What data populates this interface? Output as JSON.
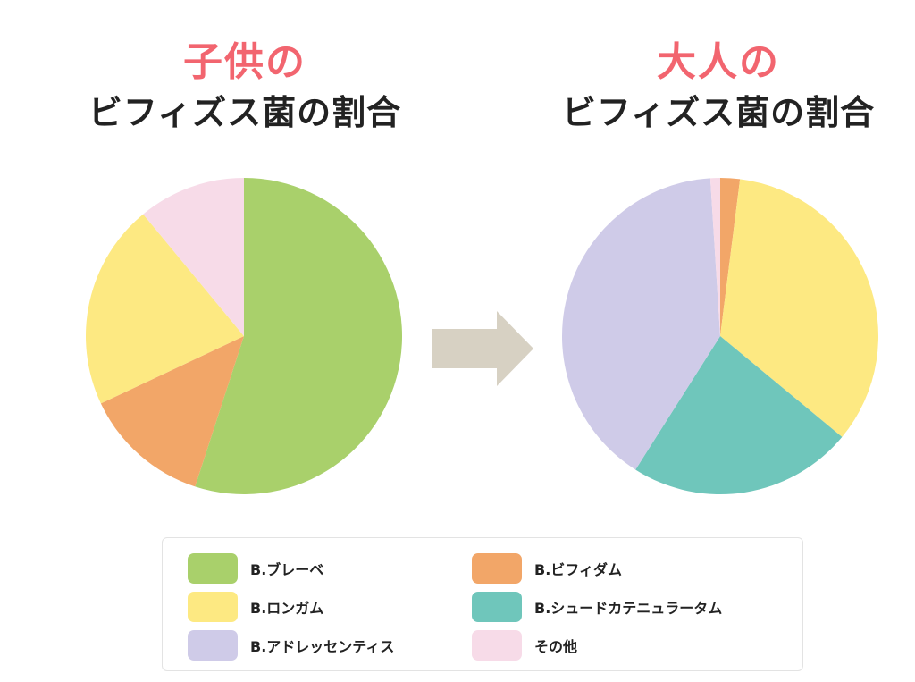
{
  "titles": {
    "left": {
      "accent": "子供の",
      "main": "ビフィズス菌の割合"
    },
    "right": {
      "accent": "大人の",
      "main": "ビフィズス菌の割合"
    }
  },
  "colors": {
    "title_accent": "#f2656f",
    "arrow": "#d7d1c3"
  },
  "legend": [
    {
      "label": "B.ブレーベ",
      "color": "#a9d06b"
    },
    {
      "label": "B.ビフィダム",
      "color": "#f2a668"
    },
    {
      "label": "B.ロンガム",
      "color": "#fde982"
    },
    {
      "label": "B.シュードカテニュラータム",
      "color": "#6fc6bb"
    },
    {
      "label": "B.アドレッセンティス",
      "color": "#cfcbe8"
    },
    {
      "label": "その他",
      "color": "#f7dbe8"
    }
  ],
  "chart_data": [
    {
      "type": "pie",
      "title": "子供の ビフィズス菌の割合",
      "slices": [
        {
          "name": "B.ブレーベ",
          "value": 55,
          "color": "#a9d06b"
        },
        {
          "name": "B.ビフィダム",
          "value": 13,
          "color": "#f2a668"
        },
        {
          "name": "B.ロンガム",
          "value": 21,
          "color": "#fde982"
        },
        {
          "name": "その他",
          "value": 11,
          "color": "#f7dbe8"
        }
      ]
    },
    {
      "type": "pie",
      "title": "大人の ビフィズス菌の割合",
      "slices": [
        {
          "name": "B.ビフィダム",
          "value": 2,
          "color": "#f2a668"
        },
        {
          "name": "B.ロンガム",
          "value": 34,
          "color": "#fde982"
        },
        {
          "name": "B.シュードカテニュラータム",
          "value": 23,
          "color": "#6fc6bb"
        },
        {
          "name": "B.アドレッセンティス",
          "value": 40,
          "color": "#cfcbe8"
        },
        {
          "name": "その他",
          "value": 1,
          "color": "#f7dbe8"
        }
      ]
    }
  ]
}
